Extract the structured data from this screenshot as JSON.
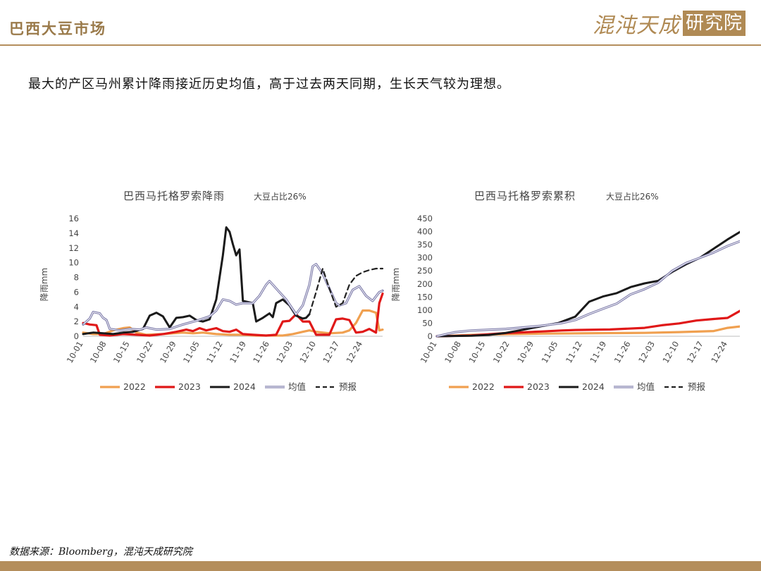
{
  "header": {
    "title": "巴西大豆市场",
    "logo_text": "混沌天成",
    "logo_seal": "研究院"
  },
  "headline": "最大的产区马州累计降雨接近历史均值，高于过去两天同期，生长天气较为理想。",
  "source": "数据来源：Bloomberg，混沌天成研究院",
  "colors": {
    "2022": "#f0a050",
    "2023": "#e01818",
    "2024": "#1a1a1a",
    "avg": "#7a78a8",
    "forecast": "#222222"
  },
  "chart_data": [
    {
      "type": "line",
      "title": "巴西马托格罗索降雨",
      "subtitle": "大豆占比26%",
      "xlabel": "",
      "ylabel": "降雨mm",
      "ylim": [
        0,
        16
      ],
      "yticks": [
        "0",
        "2",
        "4",
        "6",
        "8",
        "10",
        "12",
        "14",
        "16"
      ],
      "x_ticks": [
        "10-01",
        "10-08",
        "10-15",
        "10-22",
        "10-29",
        "11-05",
        "11-12",
        "11-19",
        "11-26",
        "12-03",
        "12-10",
        "12-17",
        "12-24"
      ],
      "x_start": "10-01",
      "days": 91,
      "legend": [
        "2022",
        "2023",
        "2024",
        "均值",
        "预报"
      ],
      "series": [
        {
          "name": "2022",
          "points": [
            [
              0,
              0.5
            ],
            [
              3,
              0.3
            ],
            [
              6,
              0.3
            ],
            [
              9,
              0.8
            ],
            [
              12,
              1.1
            ],
            [
              14,
              1.2
            ],
            [
              16,
              0.5
            ],
            [
              19,
              0.2
            ],
            [
              24,
              0.3
            ],
            [
              27,
              0.4
            ],
            [
              30,
              0.5
            ],
            [
              33,
              0.4
            ],
            [
              36,
              0.5
            ],
            [
              40,
              0.3
            ],
            [
              44,
              0.2
            ],
            [
              48,
              0.2
            ],
            [
              52,
              0.1
            ],
            [
              56,
              0.1
            ],
            [
              60,
              0.1
            ],
            [
              63,
              0.3
            ],
            [
              66,
              0.6
            ],
            [
              68,
              0.8
            ],
            [
              70,
              0.6
            ],
            [
              74,
              0.4
            ],
            [
              78,
              0.5
            ],
            [
              80,
              0.8
            ],
            [
              82,
              1.8
            ],
            [
              84,
              3.5
            ],
            [
              86,
              3.5
            ],
            [
              88,
              3.2
            ],
            [
              89,
              0.8
            ],
            [
              90,
              0.9
            ]
          ]
        },
        {
          "name": "2023",
          "points": [
            [
              0,
              1.8
            ],
            [
              2,
              1.6
            ],
            [
              4,
              1.5
            ],
            [
              5,
              0.2
            ],
            [
              8,
              0.1
            ],
            [
              12,
              0.3
            ],
            [
              16,
              0.2
            ],
            [
              20,
              0.1
            ],
            [
              24,
              0.3
            ],
            [
              28,
              0.6
            ],
            [
              31,
              0.9
            ],
            [
              33,
              0.7
            ],
            [
              35,
              1.1
            ],
            [
              37,
              0.8
            ],
            [
              40,
              1.1
            ],
            [
              42,
              0.7
            ],
            [
              44,
              0.6
            ],
            [
              46,
              0.9
            ],
            [
              48,
              0.3
            ],
            [
              51,
              0.2
            ],
            [
              55,
              0.1
            ],
            [
              58,
              0.2
            ],
            [
              60,
              2.0
            ],
            [
              62,
              2.1
            ],
            [
              64,
              3.0
            ],
            [
              66,
              2.0
            ],
            [
              68,
              2.0
            ],
            [
              70,
              0.2
            ],
            [
              72,
              0.2
            ],
            [
              74,
              0.2
            ],
            [
              76,
              2.3
            ],
            [
              78,
              2.4
            ],
            [
              80,
              2.2
            ],
            [
              82,
              0.5
            ],
            [
              84,
              0.6
            ],
            [
              86,
              1.0
            ],
            [
              88,
              0.5
            ],
            [
              89,
              4.5
            ],
            [
              90,
              5.8
            ]
          ]
        },
        {
          "name": "2024",
          "points": [
            [
              0,
              0.3
            ],
            [
              3,
              0.5
            ],
            [
              6,
              0.4
            ],
            [
              9,
              0.3
            ],
            [
              12,
              0.5
            ],
            [
              15,
              0.6
            ],
            [
              18,
              1.0
            ],
            [
              20,
              2.8
            ],
            [
              22,
              3.2
            ],
            [
              24,
              2.7
            ],
            [
              26,
              1.2
            ],
            [
              28,
              2.5
            ],
            [
              30,
              2.6
            ],
            [
              32,
              2.8
            ],
            [
              34,
              2.2
            ],
            [
              36,
              2.0
            ],
            [
              38,
              2.3
            ],
            [
              40,
              5.0
            ],
            [
              41,
              8.0
            ],
            [
              42,
              11.0
            ],
            [
              43,
              14.8
            ],
            [
              44,
              14.2
            ],
            [
              45,
              12.5
            ],
            [
              46,
              11.0
            ],
            [
              47,
              11.8
            ],
            [
              48,
              4.8
            ],
            [
              50,
              4.6
            ],
            [
              51,
              4.5
            ],
            [
              52,
              2.0
            ],
            [
              54,
              2.5
            ],
            [
              56,
              3.1
            ],
            [
              57,
              2.6
            ],
            [
              58,
              4.5
            ],
            [
              60,
              5.0
            ],
            [
              62,
              4.2
            ],
            [
              64,
              2.8
            ],
            [
              66,
              2.4
            ],
            [
              67,
              2.5
            ],
            [
              68,
              3.0
            ]
          ]
        },
        {
          "name": "均值",
          "points": [
            [
              0,
              1.6
            ],
            [
              2,
              2.4
            ],
            [
              3,
              3.3
            ],
            [
              5,
              3.1
            ],
            [
              6,
              2.5
            ],
            [
              7,
              2.2
            ],
            [
              8,
              1.0
            ],
            [
              11,
              0.8
            ],
            [
              14,
              1.0
            ],
            [
              17,
              0.9
            ],
            [
              19,
              1.2
            ],
            [
              22,
              0.9
            ],
            [
              26,
              1.0
            ],
            [
              30,
              1.6
            ],
            [
              34,
              2.1
            ],
            [
              38,
              2.7
            ],
            [
              40,
              3.5
            ],
            [
              42,
              5.0
            ],
            [
              44,
              4.8
            ],
            [
              46,
              4.3
            ],
            [
              48,
              4.5
            ],
            [
              51,
              4.5
            ],
            [
              53,
              5.5
            ],
            [
              55,
              7.0
            ],
            [
              56,
              7.5
            ],
            [
              57,
              7.0
            ],
            [
              59,
              6.0
            ],
            [
              61,
              5.0
            ],
            [
              64,
              3.0
            ],
            [
              66,
              4.2
            ],
            [
              68,
              7.0
            ],
            [
              69,
              9.5
            ],
            [
              70,
              9.8
            ],
            [
              72,
              8.5
            ],
            [
              74,
              6.5
            ],
            [
              76,
              4.5
            ],
            [
              77,
              4.2
            ],
            [
              79,
              4.5
            ],
            [
              81,
              6.3
            ],
            [
              83,
              6.8
            ],
            [
              85,
              5.5
            ],
            [
              87,
              4.8
            ],
            [
              89,
              6.0
            ],
            [
              90,
              6.2
            ]
          ]
        },
        {
          "name": "预报",
          "points": [
            [
              68,
              3.0
            ],
            [
              70,
              6.0
            ],
            [
              72,
              9.2
            ],
            [
              74,
              6.5
            ],
            [
              76,
              4.0
            ],
            [
              78,
              4.5
            ],
            [
              80,
              7.0
            ],
            [
              82,
              8.2
            ],
            [
              84,
              8.7
            ],
            [
              86,
              9.0
            ],
            [
              88,
              9.2
            ],
            [
              90,
              9.2
            ]
          ]
        }
      ]
    },
    {
      "type": "line",
      "title": "巴西马托格罗索累积",
      "subtitle": "大豆占比26%",
      "xlabel": "",
      "ylabel": "降雨mm",
      "ylim": [
        0,
        450
      ],
      "yticks": [
        "0",
        "50",
        "100",
        "150",
        "200",
        "250",
        "300",
        "350",
        "400",
        "450"
      ],
      "x_ticks": [
        "10-01",
        "10-08",
        "10-15",
        "10-22",
        "10-29",
        "11-05",
        "11-12",
        "11-19",
        "11-26",
        "12-03",
        "12-10",
        "12-17",
        "12-24"
      ],
      "x_start": "10-01",
      "days": 91,
      "legend": [
        "2022",
        "2023",
        "2024",
        "均值",
        "预报"
      ],
      "series": [
        {
          "name": "2022",
          "points": [
            [
              0,
              0
            ],
            [
              10,
              5
            ],
            [
              20,
              8
            ],
            [
              30,
              10
            ],
            [
              40,
              11
            ],
            [
              50,
              12
            ],
            [
              60,
              13
            ],
            [
              70,
              16
            ],
            [
              80,
              20
            ],
            [
              84,
              32
            ],
            [
              88,
              38
            ],
            [
              90,
              58
            ]
          ]
        },
        {
          "name": "2023",
          "points": [
            [
              0,
              0
            ],
            [
              10,
              3
            ],
            [
              20,
              12
            ],
            [
              30,
              18
            ],
            [
              36,
              22
            ],
            [
              40,
              24
            ],
            [
              50,
              26
            ],
            [
              60,
              32
            ],
            [
              65,
              42
            ],
            [
              70,
              49
            ],
            [
              75,
              60
            ],
            [
              80,
              66
            ],
            [
              84,
              70
            ],
            [
              88,
              100
            ],
            [
              90,
              106
            ]
          ]
        },
        {
          "name": "2024",
          "points": [
            [
              0,
              0
            ],
            [
              10,
              2
            ],
            [
              15,
              5
            ],
            [
              20,
              13
            ],
            [
              25,
              25
            ],
            [
              30,
              38
            ],
            [
              35,
              50
            ],
            [
              40,
              75
            ],
            [
              44,
              132
            ],
            [
              48,
              152
            ],
            [
              52,
              165
            ],
            [
              56,
              188
            ],
            [
              60,
              202
            ],
            [
              64,
              212
            ],
            [
              68,
              246
            ],
            [
              72,
              275
            ],
            [
              76,
              300
            ],
            [
              80,
              335
            ],
            [
              84,
              370
            ],
            [
              90,
              418
            ]
          ]
        },
        {
          "name": "均值",
          "points": [
            [
              0,
              0
            ],
            [
              5,
              15
            ],
            [
              10,
              22
            ],
            [
              20,
              28
            ],
            [
              30,
              40
            ],
            [
              36,
              50
            ],
            [
              40,
              62
            ],
            [
              44,
              85
            ],
            [
              48,
              105
            ],
            [
              52,
              125
            ],
            [
              56,
              160
            ],
            [
              60,
              180
            ],
            [
              64,
              205
            ],
            [
              68,
              250
            ],
            [
              72,
              280
            ],
            [
              76,
              300
            ],
            [
              80,
              320
            ],
            [
              84,
              345
            ],
            [
              88,
              365
            ],
            [
              90,
              372
            ]
          ]
        }
      ]
    }
  ]
}
